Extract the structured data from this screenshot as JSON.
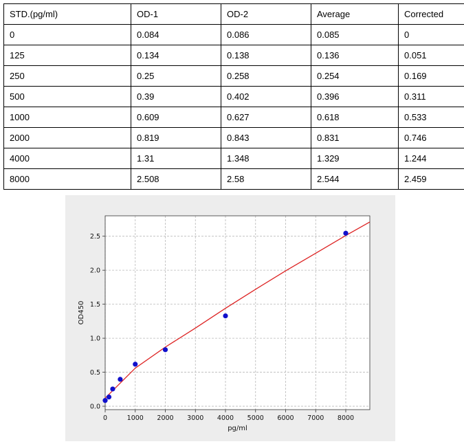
{
  "table": {
    "headers": [
      "STD.(pg/ml)",
      "OD-1",
      "OD-2",
      "Average",
      "Corrected"
    ],
    "rows": [
      [
        "0",
        "0.084",
        "0.086",
        "0.085",
        "0"
      ],
      [
        "125",
        "0.134",
        "0.138",
        "0.136",
        "0.051"
      ],
      [
        "250",
        "0.25",
        "0.258",
        "0.254",
        "0.169"
      ],
      [
        "500",
        "0.39",
        "0.402",
        "0.396",
        "0.311"
      ],
      [
        "1000",
        "0.609",
        "0.627",
        "0.618",
        "0.533"
      ],
      [
        "2000",
        "0.819",
        "0.843",
        "0.831",
        "0.746"
      ],
      [
        "4000",
        "1.31",
        "1.348",
        "1.329",
        "1.244"
      ],
      [
        "8000",
        "2.508",
        "2.58",
        "2.544",
        "2.459"
      ]
    ]
  },
  "chart_data": {
    "type": "scatter",
    "title": "",
    "xlabel": "pg/ml",
    "ylabel": "OD450",
    "xlim": [
      0,
      8800
    ],
    "ylim": [
      -0.05,
      2.8
    ],
    "xticks": [
      0,
      1000,
      2000,
      3000,
      4000,
      5000,
      6000,
      7000,
      8000
    ],
    "yticks": [
      0.0,
      0.5,
      1.0,
      1.5,
      2.0,
      2.5
    ],
    "xtick_labels": [
      "0",
      "1000",
      "2000",
      "3000",
      "4000",
      "5000",
      "6000",
      "7000",
      "8000"
    ],
    "ytick_labels": [
      "0.0",
      "0.5",
      "1.0",
      "1.5",
      "2.0",
      "2.5"
    ],
    "grid": true,
    "colors": {
      "points": "#1010cc",
      "fit": "#dd2222",
      "grid": "#b8b8b8",
      "plot_bg": "#ffffff",
      "panel_bg": "#ededed"
    },
    "series": [
      {
        "kind": "points",
        "x": [
          0,
          125,
          250,
          500,
          1000,
          2000,
          4000,
          8000
        ],
        "y": [
          0.085,
          0.136,
          0.254,
          0.396,
          0.618,
          0.831,
          1.329,
          2.544
        ]
      },
      {
        "kind": "fit-curve",
        "x": [
          0,
          1000,
          2000,
          3000,
          4000,
          5000,
          6000,
          7000,
          8000,
          8800
        ],
        "y": [
          0.12,
          0.56,
          0.87,
          1.15,
          1.44,
          1.72,
          1.99,
          2.25,
          2.51,
          2.71
        ]
      }
    ]
  }
}
